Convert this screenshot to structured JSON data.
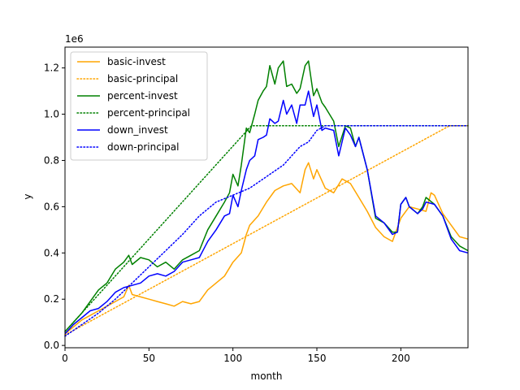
{
  "chart_data": {
    "type": "line",
    "xlabel": "month",
    "ylabel": "y",
    "offset_label": "1e6",
    "xlim": [
      0,
      240
    ],
    "ylim": [
      -0.01,
      1.29
    ],
    "x_ticks": [
      0,
      50,
      100,
      150,
      200
    ],
    "y_ticks": [
      0.0,
      0.2,
      0.4,
      0.6,
      0.8,
      1.0,
      1.2
    ],
    "x_tick_labels": [
      "0",
      "50",
      "100",
      "150",
      "200"
    ],
    "y_tick_labels": [
      "0.0",
      "0.2",
      "0.4",
      "0.6",
      "0.8",
      "1.0",
      "1.2"
    ],
    "grid": false,
    "legend_position": "upper-left",
    "series": [
      {
        "name": "basic-invest",
        "color": "#ffa500",
        "style": "solid",
        "points": [
          [
            0,
            0.05
          ],
          [
            5,
            0.08
          ],
          [
            10,
            0.11
          ],
          [
            15,
            0.13
          ],
          [
            20,
            0.15
          ],
          [
            25,
            0.17
          ],
          [
            30,
            0.19
          ],
          [
            35,
            0.21
          ],
          [
            38,
            0.26
          ],
          [
            40,
            0.22
          ],
          [
            45,
            0.21
          ],
          [
            50,
            0.2
          ],
          [
            55,
            0.19
          ],
          [
            60,
            0.18
          ],
          [
            65,
            0.17
          ],
          [
            70,
            0.19
          ],
          [
            75,
            0.18
          ],
          [
            80,
            0.19
          ],
          [
            85,
            0.24
          ],
          [
            90,
            0.27
          ],
          [
            95,
            0.3
          ],
          [
            100,
            0.36
          ],
          [
            105,
            0.4
          ],
          [
            108,
            0.48
          ],
          [
            110,
            0.52
          ],
          [
            115,
            0.56
          ],
          [
            120,
            0.62
          ],
          [
            125,
            0.67
          ],
          [
            130,
            0.69
          ],
          [
            135,
            0.7
          ],
          [
            140,
            0.66
          ],
          [
            143,
            0.76
          ],
          [
            145,
            0.79
          ],
          [
            148,
            0.72
          ],
          [
            150,
            0.76
          ],
          [
            155,
            0.68
          ],
          [
            160,
            0.66
          ],
          [
            165,
            0.72
          ],
          [
            170,
            0.7
          ],
          [
            175,
            0.64
          ],
          [
            180,
            0.58
          ],
          [
            185,
            0.51
          ],
          [
            190,
            0.47
          ],
          [
            195,
            0.45
          ],
          [
            200,
            0.55
          ],
          [
            205,
            0.6
          ],
          [
            210,
            0.59
          ],
          [
            215,
            0.58
          ],
          [
            218,
            0.66
          ],
          [
            220,
            0.65
          ],
          [
            225,
            0.57
          ],
          [
            230,
            0.52
          ],
          [
            235,
            0.47
          ],
          [
            240,
            0.46
          ]
        ]
      },
      {
        "name": "basic-principal",
        "color": "#ffa500",
        "style": "dotted",
        "points": [
          [
            0,
            0.045
          ],
          [
            229,
            0.95
          ],
          [
            240,
            0.95
          ]
        ]
      },
      {
        "name": "percent-invest",
        "color": "#008000",
        "style": "solid",
        "points": [
          [
            0,
            0.06
          ],
          [
            5,
            0.1
          ],
          [
            10,
            0.14
          ],
          [
            15,
            0.19
          ],
          [
            20,
            0.24
          ],
          [
            25,
            0.27
          ],
          [
            30,
            0.33
          ],
          [
            35,
            0.36
          ],
          [
            38,
            0.39
          ],
          [
            40,
            0.35
          ],
          [
            45,
            0.38
          ],
          [
            50,
            0.37
          ],
          [
            55,
            0.34
          ],
          [
            60,
            0.36
          ],
          [
            65,
            0.33
          ],
          [
            70,
            0.37
          ],
          [
            75,
            0.39
          ],
          [
            80,
            0.41
          ],
          [
            85,
            0.5
          ],
          [
            90,
            0.56
          ],
          [
            95,
            0.62
          ],
          [
            98,
            0.66
          ],
          [
            100,
            0.74
          ],
          [
            103,
            0.69
          ],
          [
            105,
            0.78
          ],
          [
            108,
            0.94
          ],
          [
            110,
            0.92
          ],
          [
            113,
            1.0
          ],
          [
            115,
            1.06
          ],
          [
            118,
            1.1
          ],
          [
            120,
            1.12
          ],
          [
            122,
            1.21
          ],
          [
            125,
            1.13
          ],
          [
            127,
            1.2
          ],
          [
            130,
            1.23
          ],
          [
            132,
            1.12
          ],
          [
            135,
            1.13
          ],
          [
            138,
            1.09
          ],
          [
            140,
            1.11
          ],
          [
            143,
            1.21
          ],
          [
            145,
            1.23
          ],
          [
            148,
            1.08
          ],
          [
            150,
            1.11
          ],
          [
            153,
            1.05
          ],
          [
            155,
            1.03
          ],
          [
            160,
            0.97
          ],
          [
            163,
            0.86
          ],
          [
            167,
            0.95
          ],
          [
            170,
            0.94
          ],
          [
            173,
            0.86
          ],
          [
            175,
            0.9
          ],
          [
            180,
            0.76
          ],
          [
            185,
            0.55
          ],
          [
            190,
            0.53
          ],
          [
            195,
            0.49
          ],
          [
            198,
            0.49
          ],
          [
            200,
            0.61
          ],
          [
            203,
            0.64
          ],
          [
            205,
            0.6
          ],
          [
            210,
            0.57
          ],
          [
            213,
            0.6
          ],
          [
            215,
            0.64
          ],
          [
            220,
            0.61
          ],
          [
            225,
            0.56
          ],
          [
            230,
            0.47
          ],
          [
            235,
            0.43
          ],
          [
            240,
            0.41
          ]
        ]
      },
      {
        "name": "percent-principal",
        "color": "#008000",
        "style": "dotted",
        "points": [
          [
            0,
            0.06
          ],
          [
            111,
            0.95
          ],
          [
            240,
            0.95
          ]
        ]
      },
      {
        "name": "down_invest",
        "color": "#0000ff",
        "style": "solid",
        "points": [
          [
            0,
            0.05
          ],
          [
            5,
            0.09
          ],
          [
            10,
            0.12
          ],
          [
            15,
            0.15
          ],
          [
            20,
            0.16
          ],
          [
            25,
            0.19
          ],
          [
            30,
            0.23
          ],
          [
            35,
            0.25
          ],
          [
            40,
            0.26
          ],
          [
            45,
            0.27
          ],
          [
            50,
            0.3
          ],
          [
            55,
            0.31
          ],
          [
            60,
            0.3
          ],
          [
            65,
            0.32
          ],
          [
            70,
            0.36
          ],
          [
            75,
            0.37
          ],
          [
            80,
            0.38
          ],
          [
            85,
            0.45
          ],
          [
            90,
            0.5
          ],
          [
            95,
            0.56
          ],
          [
            98,
            0.57
          ],
          [
            100,
            0.65
          ],
          [
            103,
            0.6
          ],
          [
            105,
            0.67
          ],
          [
            108,
            0.76
          ],
          [
            110,
            0.8
          ],
          [
            113,
            0.82
          ],
          [
            115,
            0.89
          ],
          [
            118,
            0.9
          ],
          [
            120,
            0.91
          ],
          [
            122,
            0.98
          ],
          [
            125,
            0.96
          ],
          [
            127,
            0.97
          ],
          [
            130,
            1.06
          ],
          [
            132,
            1.0
          ],
          [
            135,
            1.04
          ],
          [
            138,
            0.96
          ],
          [
            140,
            1.04
          ],
          [
            143,
            1.04
          ],
          [
            145,
            1.1
          ],
          [
            148,
            0.99
          ],
          [
            150,
            1.04
          ],
          [
            153,
            0.93
          ],
          [
            155,
            0.94
          ],
          [
            160,
            0.93
          ],
          [
            163,
            0.82
          ],
          [
            167,
            0.94
          ],
          [
            170,
            0.91
          ],
          [
            173,
            0.86
          ],
          [
            175,
            0.9
          ],
          [
            180,
            0.76
          ],
          [
            185,
            0.56
          ],
          [
            190,
            0.53
          ],
          [
            195,
            0.48
          ],
          [
            198,
            0.49
          ],
          [
            200,
            0.61
          ],
          [
            203,
            0.64
          ],
          [
            205,
            0.6
          ],
          [
            210,
            0.57
          ],
          [
            213,
            0.59
          ],
          [
            215,
            0.62
          ],
          [
            220,
            0.61
          ],
          [
            225,
            0.56
          ],
          [
            230,
            0.46
          ],
          [
            235,
            0.41
          ],
          [
            240,
            0.4
          ]
        ]
      },
      {
        "name": "down-principal",
        "color": "#0000ff",
        "style": "dotted",
        "points": [
          [
            0,
            0.04
          ],
          [
            10,
            0.09
          ],
          [
            20,
            0.14
          ],
          [
            30,
            0.2
          ],
          [
            40,
            0.27
          ],
          [
            50,
            0.34
          ],
          [
            60,
            0.41
          ],
          [
            70,
            0.48
          ],
          [
            80,
            0.56
          ],
          [
            90,
            0.62
          ],
          [
            100,
            0.65
          ],
          [
            110,
            0.68
          ],
          [
            120,
            0.73
          ],
          [
            130,
            0.78
          ],
          [
            140,
            0.86
          ],
          [
            145,
            0.88
          ],
          [
            150,
            0.93
          ],
          [
            155,
            0.95
          ],
          [
            240,
            0.95
          ]
        ]
      }
    ]
  }
}
